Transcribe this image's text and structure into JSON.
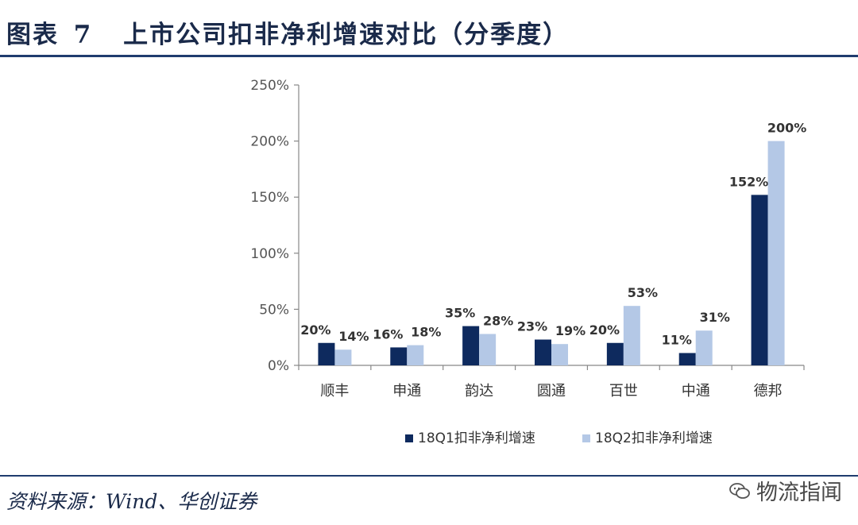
{
  "header": {
    "figure_label": "图表",
    "figure_number": "7",
    "title": "上市公司扣非净利增速对比（分季度）"
  },
  "footer": {
    "source": "资料来源：Wind、华创证券",
    "watermark": "物流指闻"
  },
  "colors": {
    "series1": "#0e2a5e",
    "series2": "#b4c8e6",
    "rule": "#1f3c6e"
  },
  "chart_data": {
    "type": "bar",
    "categories": [
      "顺丰",
      "申通",
      "韵达",
      "圆通",
      "百世",
      "中通",
      "德邦"
    ],
    "series": [
      {
        "name": "18Q1扣非净利增速",
        "values": [
          20,
          16,
          35,
          23,
          20,
          11,
          152
        ],
        "labels": [
          "20%",
          "16%",
          "35%",
          "23%",
          "20%",
          "11%",
          "152%"
        ]
      },
      {
        "name": "18Q2扣非净利增速",
        "values": [
          14,
          18,
          28,
          19,
          53,
          31,
          200
        ],
        "labels": [
          "14%",
          "18%",
          "28%",
          "19%",
          "53%",
          "31%",
          "200%"
        ]
      }
    ],
    "ylim": [
      0,
      250
    ],
    "yticks": [
      "0%",
      "50%",
      "100%",
      "150%",
      "200%",
      "250%"
    ],
    "ytick_values": [
      0,
      50,
      100,
      150,
      200,
      250
    ],
    "legend": "bottom-center",
    "grid": false,
    "title": "",
    "xlabel": "",
    "ylabel": ""
  }
}
